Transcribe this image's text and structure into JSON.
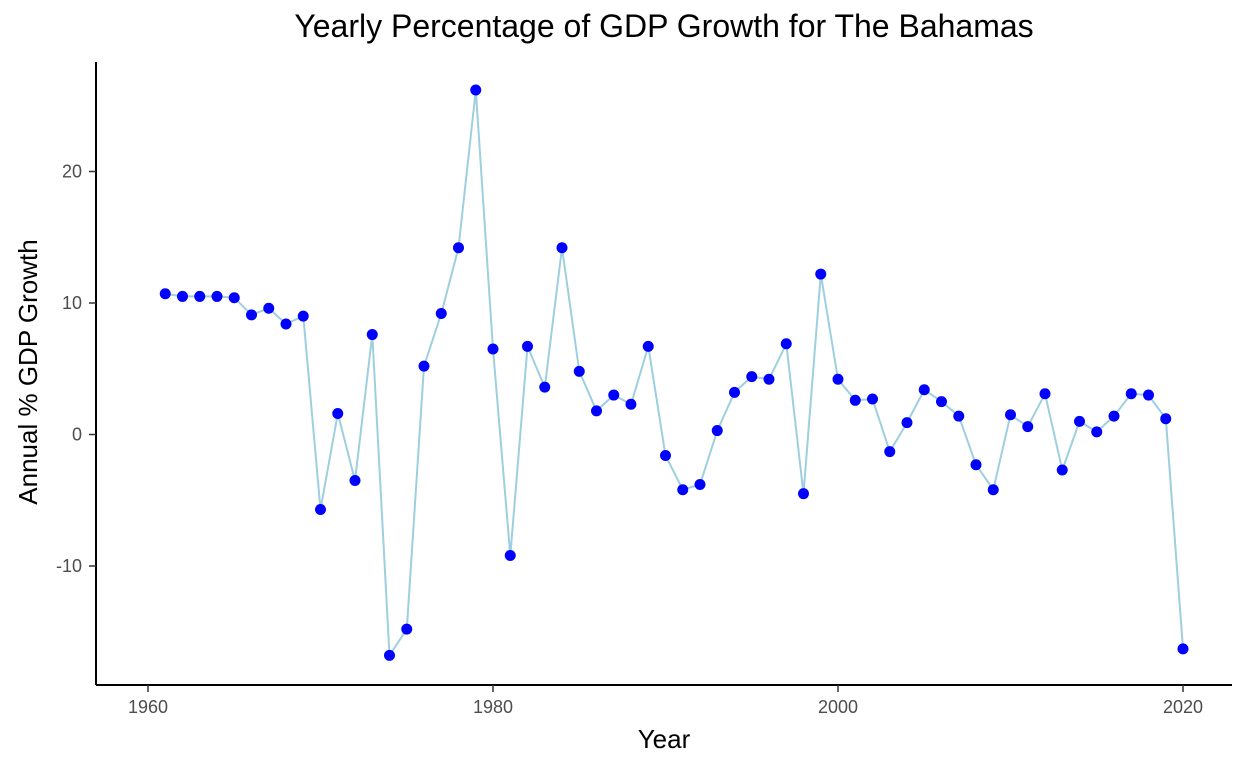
{
  "chart_data": {
    "type": "line",
    "title": "Yearly Percentage of GDP Growth for The Bahamas",
    "xlabel": "Year",
    "ylabel": "Annual % GDP Growth",
    "xlim": [
      1960,
      2020
    ],
    "ylim": [
      -17,
      26
    ],
    "x_ticks": [
      "1960",
      "1980",
      "2000",
      "2020"
    ],
    "y_ticks": [
      "-10",
      "0",
      "10",
      "20"
    ],
    "grid": false,
    "legend": "none",
    "line_color": "#9ecfdf",
    "point_color": "#0000ff",
    "series": [
      {
        "x": [
          1961,
          1962,
          1963,
          1964,
          1965,
          1966,
          1967,
          1968,
          1969,
          1970,
          1971,
          1972,
          1973,
          1974,
          1975,
          1976,
          1977,
          1978,
          1979,
          1980,
          1981,
          1982,
          1983,
          1984,
          1985,
          1986,
          1987,
          1988,
          1989,
          1990,
          1991,
          1992,
          1993,
          1994,
          1995,
          1996,
          1997,
          1998,
          1999,
          2000,
          2001,
          2002,
          2003,
          2004,
          2005,
          2006,
          2007,
          2008,
          2009,
          2010,
          2011,
          2012,
          2013,
          2014,
          2015,
          2016,
          2017,
          2018,
          2019,
          2020
        ],
        "values": [
          10.7,
          10.5,
          10.5,
          10.5,
          10.4,
          9.1,
          9.6,
          8.4,
          9.0,
          -5.7,
          1.6,
          -3.5,
          7.6,
          -16.8,
          -14.8,
          5.2,
          9.2,
          14.2,
          26.2,
          6.5,
          -9.2,
          6.7,
          3.6,
          14.2,
          4.8,
          1.8,
          3.0,
          2.3,
          6.7,
          -1.6,
          -4.2,
          -3.8,
          0.3,
          3.2,
          4.4,
          4.2,
          6.9,
          -4.5,
          12.2,
          4.2,
          2.6,
          2.7,
          -1.3,
          0.9,
          3.4,
          2.5,
          1.4,
          -2.3,
          -4.2,
          1.5,
          0.6,
          3.1,
          -2.7,
          1.0,
          0.2,
          1.4,
          3.1,
          3.0,
          1.2,
          -16.3
        ]
      }
    ]
  }
}
